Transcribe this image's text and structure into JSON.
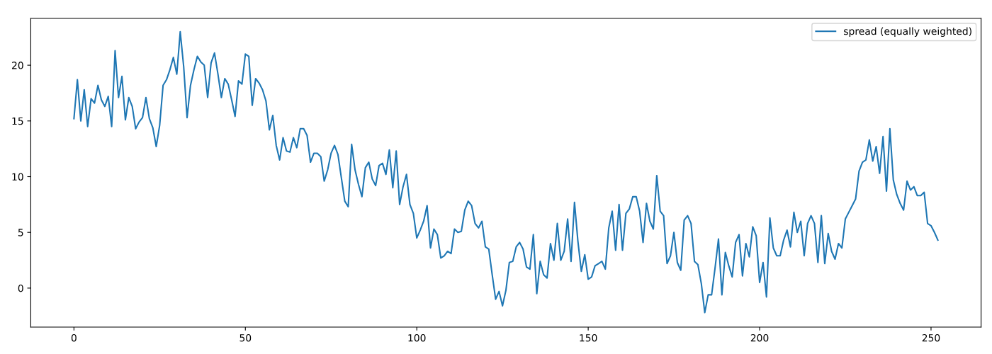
{
  "chart_data": {
    "type": "line",
    "x": [
      0,
      1,
      2,
      3,
      4,
      5,
      6,
      7,
      8,
      9,
      10,
      11,
      12,
      13,
      14,
      15,
      16,
      17,
      18,
      19,
      20,
      21,
      22,
      23,
      24,
      25,
      26,
      27,
      28,
      29,
      30,
      31,
      32,
      33,
      34,
      35,
      36,
      37,
      38,
      39,
      40,
      41,
      42,
      43,
      44,
      45,
      46,
      47,
      48,
      49,
      50,
      51,
      52,
      53,
      54,
      55,
      56,
      57,
      58,
      59,
      60,
      61,
      62,
      63,
      64,
      65,
      66,
      67,
      68,
      69,
      70,
      71,
      72,
      73,
      74,
      75,
      76,
      77,
      78,
      79,
      80,
      81,
      82,
      83,
      84,
      85,
      86,
      87,
      88,
      89,
      90,
      91,
      92,
      93,
      94,
      95,
      96,
      97,
      98,
      99,
      100,
      101,
      102,
      103,
      104,
      105,
      106,
      107,
      108,
      109,
      110,
      111,
      112,
      113,
      114,
      115,
      116,
      117,
      118,
      119,
      120,
      121,
      122,
      123,
      124,
      125,
      126,
      127,
      128,
      129,
      130,
      131,
      132,
      133,
      134,
      135,
      136,
      137,
      138,
      139,
      140,
      141,
      142,
      143,
      144,
      145,
      146,
      147,
      148,
      149,
      150,
      151,
      152,
      153,
      154,
      155,
      156,
      157,
      158,
      159,
      160,
      161,
      162,
      163,
      164,
      165,
      166,
      167,
      168,
      169,
      170,
      171,
      172,
      173,
      174,
      175,
      176,
      177,
      178,
      179,
      180,
      181,
      182,
      183,
      184,
      185,
      186,
      187,
      188,
      189,
      190,
      191,
      192,
      193,
      194,
      195,
      196,
      197,
      198,
      199,
      200,
      201,
      202,
      203,
      204,
      205,
      206,
      207,
      208,
      209,
      210,
      211,
      212,
      213,
      214,
      215,
      216,
      217,
      218,
      219,
      220,
      221,
      222,
      223,
      224,
      225,
      226,
      227,
      228,
      229,
      230,
      231,
      232,
      233,
      234,
      235,
      236,
      237,
      238,
      239,
      240,
      241,
      242,
      243,
      244,
      245,
      246,
      247,
      248,
      249,
      250,
      251,
      252
    ],
    "series": [
      {
        "name": "spread (equally weighted)",
        "color": "#1f77b4",
        "values": [
          15.2,
          18.7,
          15.0,
          17.8,
          14.5,
          17.0,
          16.6,
          18.2,
          16.9,
          16.3,
          17.2,
          14.5,
          21.3,
          17.1,
          19.0,
          15.1,
          17.1,
          16.3,
          14.3,
          14.9,
          15.3,
          17.1,
          15.2,
          14.4,
          12.7,
          14.6,
          18.2,
          18.7,
          19.6,
          20.7,
          19.2,
          23.0,
          19.9,
          15.3,
          18.2,
          19.6,
          20.8,
          20.3,
          20.0,
          17.1,
          20.2,
          21.1,
          19.2,
          17.1,
          18.8,
          18.3,
          16.9,
          15.4,
          18.6,
          18.3,
          21.0,
          20.8,
          16.4,
          18.8,
          18.4,
          17.8,
          16.8,
          14.2,
          15.5,
          12.8,
          11.5,
          13.5,
          12.3,
          12.2,
          13.5,
          12.6,
          14.3,
          14.3,
          13.7,
          11.3,
          12.1,
          12.1,
          11.8,
          9.6,
          10.6,
          12.1,
          12.8,
          12.0,
          9.9,
          7.8,
          7.3,
          12.9,
          10.6,
          9.3,
          8.2,
          10.8,
          11.3,
          9.8,
          9.2,
          11.0,
          11.2,
          10.2,
          12.4,
          9.0,
          12.3,
          7.5,
          9.1,
          10.2,
          7.5,
          6.7,
          4.5,
          5.2,
          6.0,
          7.4,
          3.6,
          5.3,
          4.8,
          2.7,
          2.9,
          3.3,
          3.1,
          5.3,
          5.0,
          5.1,
          7.0,
          7.8,
          7.4,
          5.8,
          5.4,
          6.0,
          3.7,
          3.5,
          1.2,
          -1.0,
          -0.3,
          -1.6,
          -0.2,
          2.3,
          2.4,
          3.7,
          4.1,
          3.5,
          1.9,
          1.7,
          4.8,
          -0.5,
          2.4,
          1.2,
          0.9,
          4.0,
          2.5,
          5.8,
          2.5,
          3.3,
          6.2,
          2.4,
          7.7,
          4.2,
          1.5,
          3.0,
          0.8,
          1.0,
          2.0,
          2.2,
          2.4,
          1.7,
          5.4,
          6.9,
          3.4,
          7.5,
          3.4,
          6.7,
          7.1,
          8.2,
          8.2,
          6.9,
          4.1,
          7.6,
          6.0,
          5.3,
          10.1,
          6.9,
          6.5,
          2.2,
          2.9,
          5.0,
          2.3,
          1.6,
          6.1,
          6.5,
          5.8,
          2.4,
          2.1,
          0.4,
          -2.2,
          -0.6,
          -0.6,
          1.8,
          4.4,
          -0.6,
          3.2,
          2.0,
          1.0,
          4.1,
          4.8,
          1.1,
          4.0,
          2.8,
          5.5,
          4.7,
          0.5,
          2.3,
          -0.8,
          6.3,
          3.6,
          2.9,
          2.9,
          4.3,
          5.2,
          3.7,
          6.8,
          5.0,
          6.0,
          2.9,
          5.8,
          6.5,
          5.8,
          2.3,
          6.5,
          2.2,
          4.9,
          3.3,
          2.6,
          4.0,
          3.6,
          6.2,
          6.8,
          7.4,
          8.0,
          10.5,
          11.3,
          11.5,
          13.3,
          11.4,
          12.7,
          10.3,
          13.6,
          8.7,
          14.3,
          9.7,
          8.4,
          7.6,
          7.0,
          9.6,
          8.8,
          9.1,
          8.3,
          8.3,
          8.6,
          5.8,
          5.6,
          5.0,
          4.3
        ]
      }
    ],
    "xlim": [
      -12.6,
      264.6
    ],
    "ylim": [
      -3.5,
      24.2
    ],
    "xticks": [
      0,
      50,
      100,
      150,
      200,
      250
    ],
    "yticks": [
      0,
      5,
      10,
      15,
      20
    ],
    "legend": "top right",
    "grid": false
  }
}
